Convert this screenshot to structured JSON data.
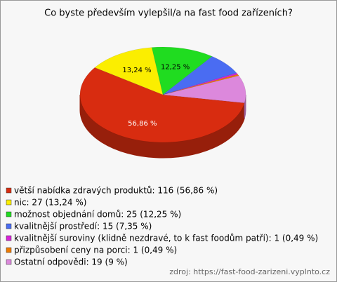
{
  "chart_data": {
    "type": "pie3d",
    "title": "Co byste především vylepšil/a na fast food zařízeních?",
    "categories": [
      "větší nabídka zdravých produktů: 116 (56,86 %)",
      "nic: 27 (13,24 %)",
      "možnost objednání domů: 25 (12,25 %)",
      "kvalitnější prostředí: 15 (7,35 %)",
      "kvalitnější suroviny (klidně nezdravé, to k fast foodům patří): 1 (0,49 %)",
      "přizpůsobení ceny na porci: 1 (0,49 %)",
      "Ostatní odpovědi: 19 (9 %)"
    ],
    "values": [
      116,
      27,
      25,
      15,
      1,
      1,
      19
    ],
    "value_labels": [
      "56,86 %",
      "13,24 %",
      "12,25 %",
      null,
      null,
      null,
      null
    ],
    "colors": [
      "#d82c10",
      "#fbee00",
      "#20dc20",
      "#4a6cf2",
      "#d822d8",
      "#ee7a00",
      "#dc88dc"
    ],
    "legend": "bottom-left",
    "source": "zdroj: https://fast-food-zarizeni.vyplnto.cz"
  }
}
